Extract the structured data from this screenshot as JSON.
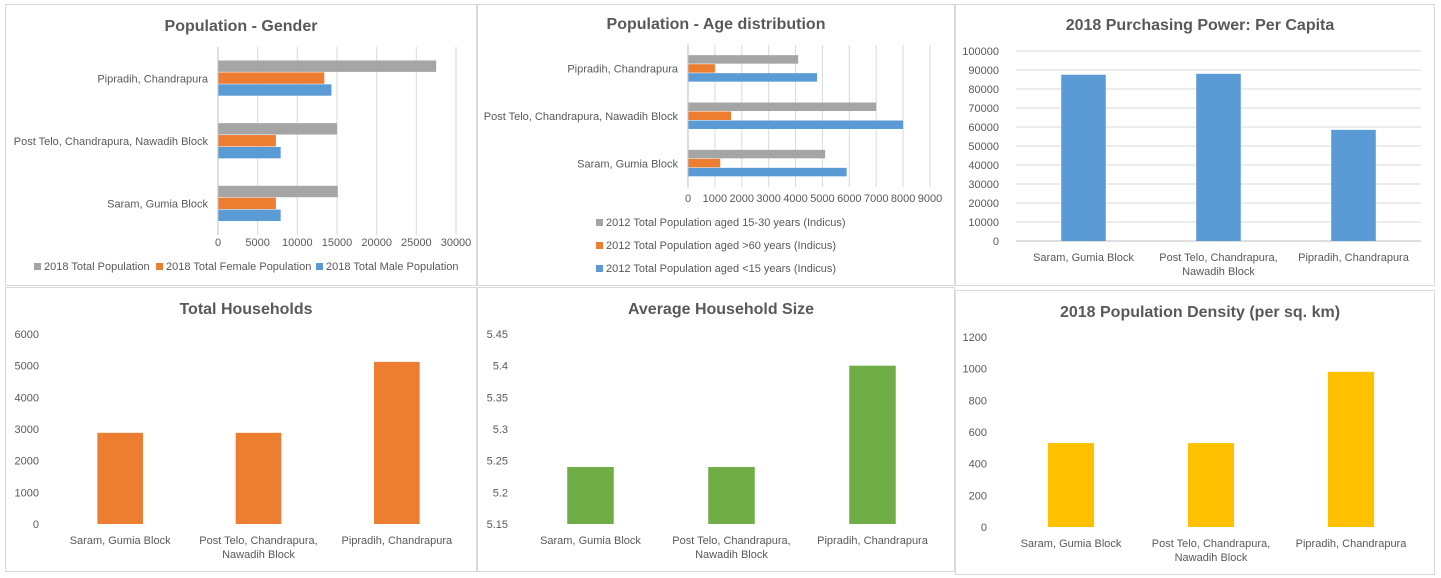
{
  "colors": {
    "blue": "#5b9bd5",
    "orange": "#ed7d31",
    "gray": "#a5a5a5",
    "green": "#70ad47",
    "yellow": "#ffc000"
  },
  "chart_data": [
    {
      "id": "gender",
      "type": "bar",
      "orientation": "horizontal",
      "title": "Population - Gender",
      "categories": [
        "Saram, Gumia Block",
        "Post Telo, Chandrapura, Nawadih Block",
        "Pipradih, Chandrapura"
      ],
      "series": [
        {
          "name": "2018 Total Population",
          "color": "gray",
          "values": [
            15100,
            15000,
            27500
          ]
        },
        {
          "name": "2018 Total Female Population",
          "color": "orange",
          "values": [
            7300,
            7300,
            13400
          ]
        },
        {
          "name": "2018 Total Male Population",
          "color": "blue",
          "values": [
            7900,
            7900,
            14300
          ]
        }
      ],
      "xlim": [
        0,
        30000
      ],
      "ticks": [
        0,
        5000,
        10000,
        15000,
        20000,
        25000,
        30000
      ],
      "grid": true,
      "legend": "bottom"
    },
    {
      "id": "age",
      "type": "bar",
      "orientation": "horizontal",
      "title": "Population - Age distribution",
      "categories": [
        "Saram, Gumia Block",
        "Post Telo, Chandrapura, Nawadih Block",
        "Pipradih, Chandrapura"
      ],
      "series": [
        {
          "name": "2012 Total Population aged 15-30 years (Indicus)",
          "color": "gray",
          "values": [
            5100,
            7000,
            4100
          ]
        },
        {
          "name": "2012 Total Population aged >60 years (Indicus)",
          "color": "orange",
          "values": [
            1200,
            1600,
            1000
          ]
        },
        {
          "name": "2012 Total Population aged <15 years (Indicus)",
          "color": "blue",
          "values": [
            5900,
            8000,
            4800
          ]
        }
      ],
      "xlim": [
        0,
        9000
      ],
      "ticks": [
        0,
        1000,
        2000,
        3000,
        4000,
        5000,
        6000,
        7000,
        8000,
        9000
      ],
      "grid": true,
      "legend": "bottom"
    },
    {
      "id": "purchasing",
      "type": "bar",
      "title": "2018 Purchasing Power: Per Capita",
      "categories": [
        [
          "Saram, Gumia Block"
        ],
        [
          "Post Telo, Chandrapura,",
          "Nawadih Block"
        ],
        [
          "Pipradih, Chandrapura"
        ]
      ],
      "series": [
        {
          "color": "blue",
          "values": [
            87500,
            88000,
            58500
          ]
        }
      ],
      "ylim": [
        0,
        100000
      ],
      "ticks": [
        0,
        10000,
        20000,
        30000,
        40000,
        50000,
        60000,
        70000,
        80000,
        90000,
        100000
      ],
      "grid": true
    },
    {
      "id": "households",
      "type": "bar",
      "title": "Total Households",
      "categories": [
        [
          "Saram, Gumia Block"
        ],
        [
          "Post Telo, Chandrapura,",
          "Nawadih Block"
        ],
        [
          "Pipradih, Chandrapura"
        ]
      ],
      "series": [
        {
          "color": "orange",
          "values": [
            2880,
            2880,
            5120
          ]
        }
      ],
      "ylim": [
        0,
        6000
      ],
      "ticks": [
        0,
        1000,
        2000,
        3000,
        4000,
        5000,
        6000
      ],
      "grid": false
    },
    {
      "id": "hhsize",
      "type": "bar",
      "title": "Average Household Size",
      "categories": [
        [
          "Saram, Gumia Block"
        ],
        [
          "Post Telo, Chandrapura,",
          "Nawadih Block"
        ],
        [
          "Pipradih, Chandrapura"
        ]
      ],
      "series": [
        {
          "color": "green",
          "values": [
            5.24,
            5.24,
            5.4
          ]
        }
      ],
      "ylim": [
        5.15,
        5.45
      ],
      "ticks": [
        "5.15",
        "5.2",
        "5.25",
        "5.3",
        "5.35",
        "5.4",
        "5.45"
      ],
      "grid": false
    },
    {
      "id": "density",
      "type": "bar",
      "title": "2018 Population Density (per sq. km)",
      "categories": [
        [
          "Saram, Gumia Block"
        ],
        [
          "Post Telo, Chandrapura,",
          "Nawadih Block"
        ],
        [
          "Pipradih, Chandrapura"
        ]
      ],
      "series": [
        {
          "color": "yellow",
          "values": [
            530,
            530,
            980
          ]
        }
      ],
      "ylim": [
        0,
        1200
      ],
      "ticks": [
        0,
        200,
        400,
        600,
        800,
        1000,
        1200
      ],
      "grid": false
    }
  ]
}
